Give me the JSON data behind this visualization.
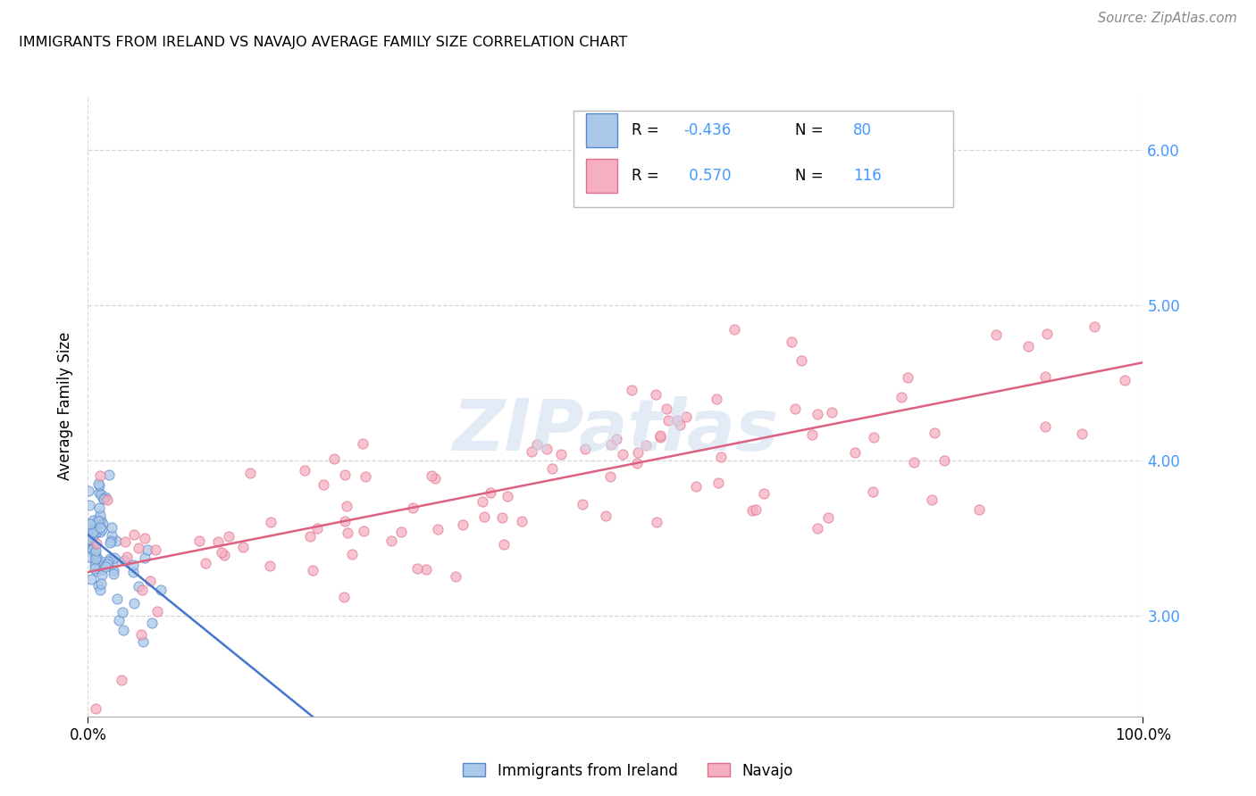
{
  "title": "IMMIGRANTS FROM IRELAND VS NAVAJO AVERAGE FAMILY SIZE CORRELATION CHART",
  "source": "Source: ZipAtlas.com",
  "ylabel": "Average Family Size",
  "watermark": "ZIPatlas",
  "legend_ireland": "Immigrants from Ireland",
  "legend_navajo": "Navajo",
  "r_ireland": -0.436,
  "n_ireland": 80,
  "r_navajo": 0.57,
  "n_navajo": 116,
  "color_ireland": "#aac8e8",
  "color_navajo": "#f5afc0",
  "edge_ireland": "#5588cc",
  "edge_navajo": "#e07090",
  "line_ireland": "#4477cc",
  "line_navajo": "#dd6080",
  "background": "#ffffff",
  "grid_color": "#cccccc",
  "tick_color": "#4499ff",
  "ylim_min": 2.35,
  "ylim_max": 6.35,
  "yticks": [
    3.0,
    4.0,
    5.0,
    6.0
  ],
  "ytick_labels": [
    "3.00",
    "4.00",
    "5.00",
    "6.00"
  ],
  "seed_ireland": 7,
  "seed_navajo": 13
}
